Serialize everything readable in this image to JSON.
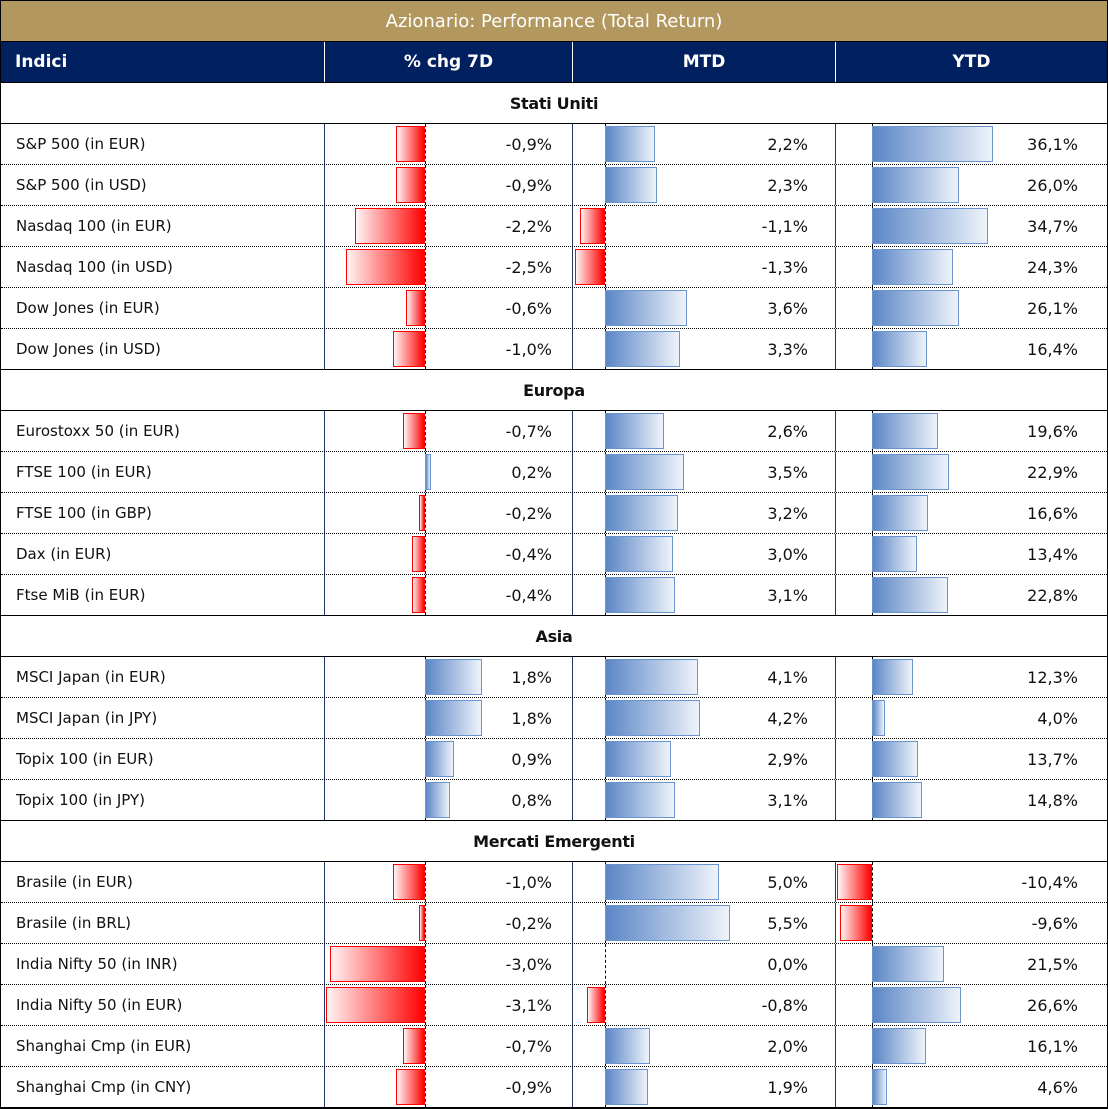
{
  "title": "Azionario: Performance (Total Return)",
  "headers": [
    "Indici",
    "% chg 7D",
    "MTD",
    "YTD"
  ],
  "sections": [
    {
      "name": "Stati Uniti",
      "rows": [
        {
          "name": "S&P 500 (in EUR)",
          "values": [
            -0.9,
            2.2,
            36.1
          ],
          "labels": [
            "-0,9%",
            "2,2%",
            "36,1%"
          ]
        },
        {
          "name": "S&P 500 (in USD)",
          "values": [
            -0.9,
            2.3,
            26.0
          ],
          "labels": [
            "-0,9%",
            "2,3%",
            "26,0%"
          ]
        },
        {
          "name": "Nasdaq 100 (in EUR)",
          "values": [
            -2.2,
            -1.1,
            34.7
          ],
          "labels": [
            "-2,2%",
            "-1,1%",
            "34,7%"
          ]
        },
        {
          "name": "Nasdaq 100 (in USD)",
          "values": [
            -2.5,
            -1.3,
            24.3
          ],
          "labels": [
            "-2,5%",
            "-1,3%",
            "24,3%"
          ]
        },
        {
          "name": "Dow Jones (in EUR)",
          "values": [
            -0.6,
            3.6,
            26.1
          ],
          "labels": [
            "-0,6%",
            "3,6%",
            "26,1%"
          ]
        },
        {
          "name": "Dow Jones (in USD)",
          "values": [
            -1.0,
            3.3,
            16.4
          ],
          "labels": [
            "-1,0%",
            "3,3%",
            "16,4%"
          ]
        }
      ]
    },
    {
      "name": "Europa",
      "rows": [
        {
          "name": "Eurostoxx 50 (in EUR)",
          "values": [
            -0.7,
            2.6,
            19.6
          ],
          "labels": [
            "-0,7%",
            "2,6%",
            "19,6%"
          ]
        },
        {
          "name": "FTSE 100 (in EUR)",
          "values": [
            0.2,
            3.5,
            22.9
          ],
          "labels": [
            "0,2%",
            "3,5%",
            "22,9%"
          ]
        },
        {
          "name": "FTSE 100 (in GBP)",
          "values": [
            -0.2,
            3.2,
            16.6
          ],
          "labels": [
            "-0,2%",
            "3,2%",
            "16,6%"
          ]
        },
        {
          "name": "Dax (in EUR)",
          "values": [
            -0.4,
            3.0,
            13.4
          ],
          "labels": [
            "-0,4%",
            "3,0%",
            "13,4%"
          ]
        },
        {
          "name": "Ftse MiB (in EUR)",
          "values": [
            -0.4,
            3.1,
            22.8
          ],
          "labels": [
            "-0,4%",
            "3,1%",
            "22,8%"
          ]
        }
      ]
    },
    {
      "name": "Asia",
      "rows": [
        {
          "name": "MSCI Japan (in EUR)",
          "values": [
            1.8,
            4.1,
            12.3
          ],
          "labels": [
            "1,8%",
            "4,1%",
            "12,3%"
          ]
        },
        {
          "name": "MSCI Japan (in JPY)",
          "values": [
            1.8,
            4.2,
            4.0
          ],
          "labels": [
            "1,8%",
            "4,2%",
            "4,0%"
          ]
        },
        {
          "name": "Topix 100 (in EUR)",
          "values": [
            0.9,
            2.9,
            13.7
          ],
          "labels": [
            "0,9%",
            "2,9%",
            "13,7%"
          ]
        },
        {
          "name": "Topix 100 (in JPY)",
          "values": [
            0.8,
            3.1,
            14.8
          ],
          "labels": [
            "0,8%",
            "3,1%",
            "14,8%"
          ]
        }
      ]
    },
    {
      "name": "Mercati Emergenti",
      "rows": [
        {
          "name": "Brasile (in EUR)",
          "values": [
            -1.0,
            5.0,
            -10.4
          ],
          "labels": [
            "-1,0%",
            "5,0%",
            "-10,4%"
          ]
        },
        {
          "name": "Brasile (in BRL)",
          "values": [
            -0.2,
            5.5,
            -9.6
          ],
          "labels": [
            "-0,2%",
            "5,5%",
            "-9,6%"
          ]
        },
        {
          "name": "India Nifty 50 (in INR)",
          "values": [
            -3.0,
            0.0,
            21.5
          ],
          "labels": [
            "-3,0%",
            "0,0%",
            "21,5%"
          ]
        },
        {
          "name": "India Nifty 50 (in EUR)",
          "values": [
            -3.1,
            -0.8,
            26.6
          ],
          "labels": [
            "-3,1%",
            "-0,8%",
            "26,6%"
          ]
        },
        {
          "name": "Shanghai Cmp (in EUR)",
          "values": [
            -0.7,
            2.0,
            16.1
          ],
          "labels": [
            "-0,7%",
            "2,0%",
            "16,1%"
          ]
        },
        {
          "name": "Shanghai Cmp (in CNY)",
          "values": [
            -0.9,
            1.9,
            4.6
          ],
          "labels": [
            "-0,9%",
            "1,9%",
            "4,6%"
          ]
        }
      ]
    }
  ]
}
